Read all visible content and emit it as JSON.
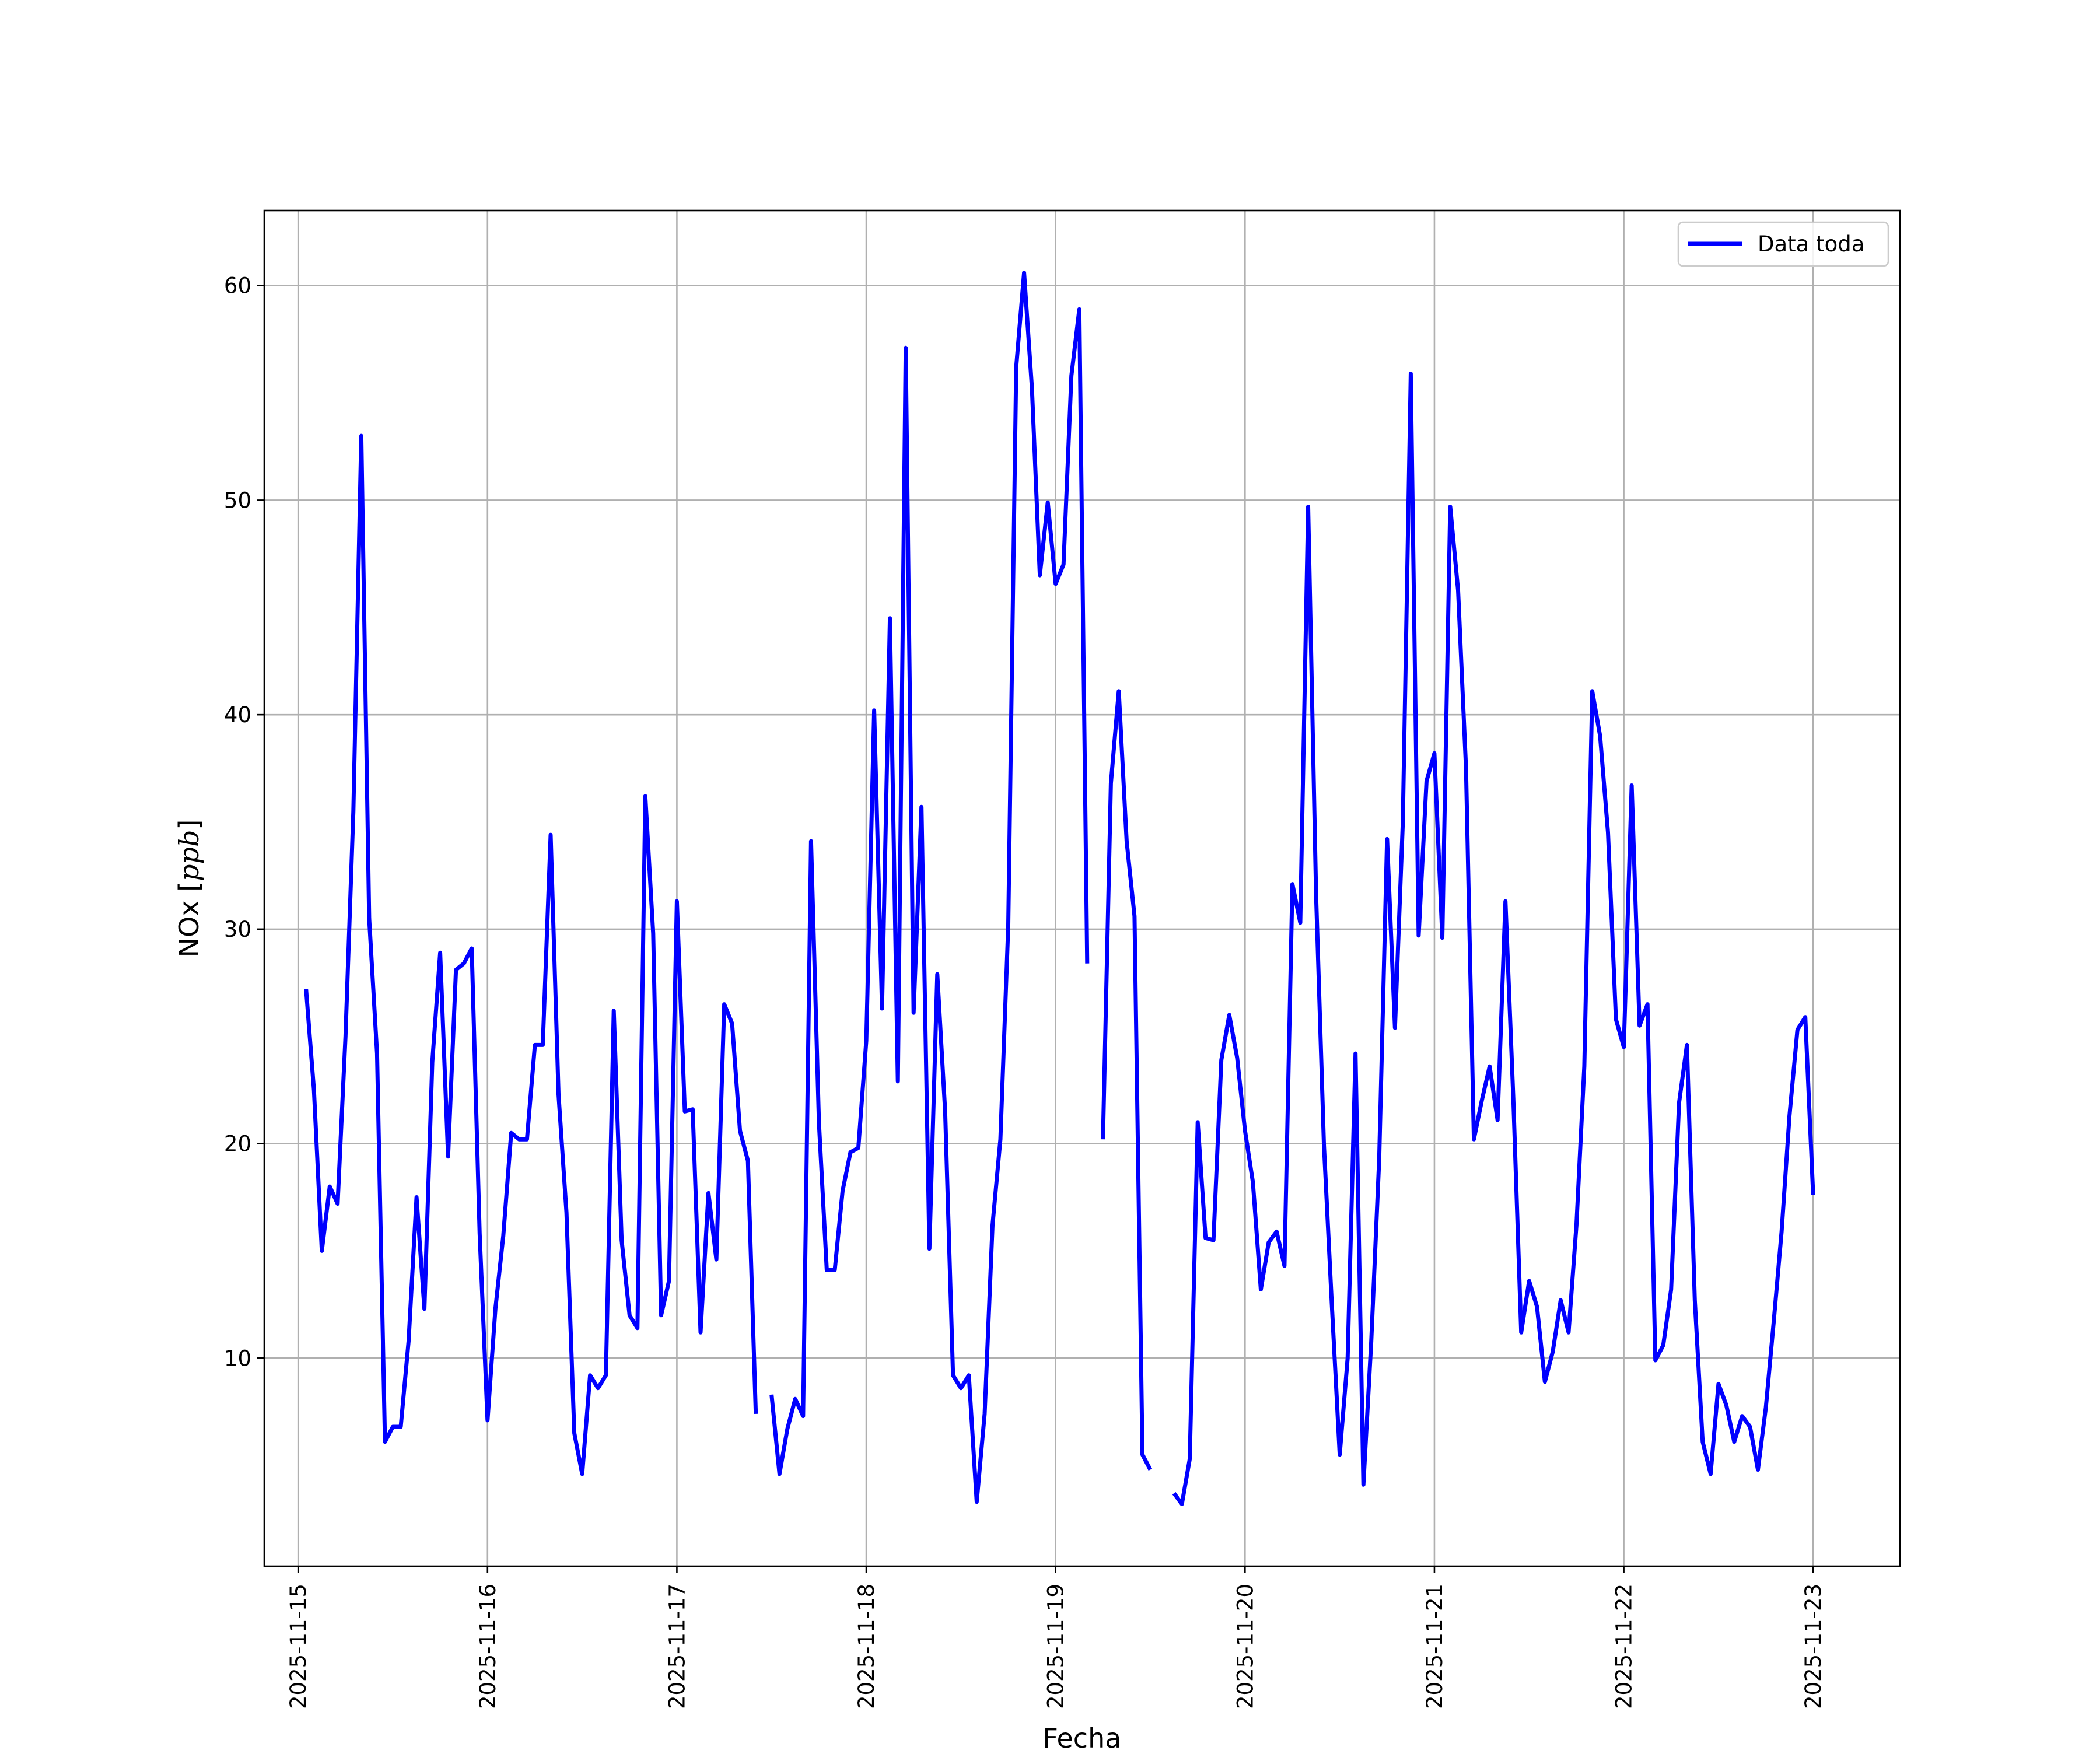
{
  "chart_data": {
    "type": "line",
    "xlabel": "Fecha",
    "ylabel": "NOx [ppb]",
    "ylabel_var": "NOx ",
    "ylabel_unit": "ppb",
    "xlim": [
      "2025-11-14T19:42",
      "2025-11-23T11:00"
    ],
    "ylim": [
      0.3,
      63.5
    ],
    "grid": true,
    "legend_position": "top-right",
    "x_ticks": [
      "2025-11-15",
      "2025-11-16",
      "2025-11-17",
      "2025-11-18",
      "2025-11-19",
      "2025-11-20",
      "2025-11-21",
      "2025-11-22",
      "2025-11-23"
    ],
    "y_ticks": [
      10,
      20,
      30,
      40,
      50,
      60
    ],
    "series": [
      {
        "name": "Data toda",
        "color": "#0000ff",
        "points": [
          [
            "2025-11-15T01:00",
            27.2
          ],
          [
            "2025-11-15T02:00",
            22.5
          ],
          [
            "2025-11-15T03:00",
            15.0
          ],
          [
            "2025-11-15T04:00",
            18.0
          ],
          [
            "2025-11-15T05:00",
            17.2
          ],
          [
            "2025-11-15T06:00",
            25.0
          ],
          [
            "2025-11-15T07:00",
            35.5
          ],
          [
            "2025-11-15T08:00",
            53.0
          ],
          [
            "2025-11-15T09:00",
            30.5
          ],
          [
            "2025-11-15T10:00",
            24.2
          ],
          [
            "2025-11-15T11:00",
            6.1
          ],
          [
            "2025-11-15T12:00",
            6.8
          ],
          [
            "2025-11-15T13:00",
            6.8
          ],
          [
            "2025-11-15T14:00",
            10.8
          ],
          [
            "2025-11-15T15:00",
            17.5
          ],
          [
            "2025-11-15T16:00",
            12.3
          ],
          [
            "2025-11-15T17:00",
            23.8
          ],
          [
            "2025-11-15T18:00",
            28.9
          ],
          [
            "2025-11-15T19:00",
            19.4
          ],
          [
            "2025-11-15T20:00",
            28.1
          ],
          [
            "2025-11-15T21:00",
            28.4
          ],
          [
            "2025-11-15T22:00",
            29.1
          ],
          [
            "2025-11-15T23:00",
            15.8
          ],
          [
            "2025-11-16T00:00",
            7.1
          ],
          [
            "2025-11-16T01:00",
            12.3
          ],
          [
            "2025-11-16T02:00",
            15.7
          ],
          [
            "2025-11-16T03:00",
            20.5
          ],
          [
            "2025-11-16T04:00",
            20.2
          ],
          [
            "2025-11-16T05:00",
            20.2
          ],
          [
            "2025-11-16T06:00",
            24.6
          ],
          [
            "2025-11-16T07:00",
            24.6
          ],
          [
            "2025-11-16T08:00",
            34.4
          ],
          [
            "2025-11-16T09:00",
            22.3
          ],
          [
            "2025-11-16T10:00",
            16.8
          ],
          [
            "2025-11-16T11:00",
            6.5
          ],
          [
            "2025-11-16T12:00",
            4.6
          ],
          [
            "2025-11-16T13:00",
            9.2
          ],
          [
            "2025-11-16T14:00",
            8.6
          ],
          [
            "2025-11-16T15:00",
            9.2
          ],
          [
            "2025-11-16T16:00",
            26.2
          ],
          [
            "2025-11-16T17:00",
            15.5
          ],
          [
            "2025-11-16T18:00",
            12.0
          ],
          [
            "2025-11-16T19:00",
            11.4
          ],
          [
            "2025-11-16T20:00",
            36.2
          ],
          [
            "2025-11-16T21:00",
            29.8
          ],
          [
            "2025-11-16T22:00",
            12.0
          ],
          [
            "2025-11-16T23:00",
            13.6
          ],
          [
            "2025-11-17T00:00",
            31.3
          ],
          [
            "2025-11-17T01:00",
            21.5
          ],
          [
            "2025-11-17T02:00",
            21.6
          ],
          [
            "2025-11-17T03:00",
            11.2
          ],
          [
            "2025-11-17T04:00",
            17.7
          ],
          [
            "2025-11-17T05:00",
            14.6
          ],
          [
            "2025-11-17T06:00",
            26.5
          ],
          [
            "2025-11-17T07:00",
            25.6
          ],
          [
            "2025-11-17T08:00",
            20.6
          ],
          [
            "2025-11-17T09:00",
            19.2
          ],
          [
            "2025-11-17T10:00",
            7.4
          ],
          null,
          [
            "2025-11-17T12:00",
            8.3
          ],
          [
            "2025-11-17T13:00",
            4.6
          ],
          [
            "2025-11-17T14:00",
            6.7
          ],
          [
            "2025-11-17T15:00",
            8.1
          ],
          [
            "2025-11-17T16:00",
            7.3
          ],
          [
            "2025-11-17T17:00",
            34.1
          ],
          [
            "2025-11-17T18:00",
            21.0
          ],
          [
            "2025-11-17T19:00",
            14.1
          ],
          [
            "2025-11-17T20:00",
            14.1
          ],
          [
            "2025-11-17T21:00",
            17.8
          ],
          [
            "2025-11-17T22:00",
            19.6
          ],
          [
            "2025-11-17T23:00",
            19.8
          ],
          [
            "2025-11-18T00:00",
            24.8
          ],
          [
            "2025-11-18T01:00",
            40.2
          ],
          [
            "2025-11-18T02:00",
            26.3
          ],
          [
            "2025-11-18T03:00",
            44.5
          ],
          [
            "2025-11-18T04:00",
            22.9
          ],
          [
            "2025-11-18T05:00",
            57.1
          ],
          [
            "2025-11-18T06:00",
            26.1
          ],
          [
            "2025-11-18T07:00",
            35.7
          ],
          [
            "2025-11-18T08:00",
            15.1
          ],
          [
            "2025-11-18T09:00",
            27.9
          ],
          [
            "2025-11-18T10:00",
            21.5
          ],
          [
            "2025-11-18T11:00",
            9.2
          ],
          [
            "2025-11-18T12:00",
            8.6
          ],
          [
            "2025-11-18T13:00",
            9.2
          ],
          [
            "2025-11-18T14:00",
            3.3
          ],
          [
            "2025-11-18T15:00",
            7.4
          ],
          [
            "2025-11-18T16:00",
            16.2
          ],
          [
            "2025-11-18T17:00",
            20.2
          ],
          [
            "2025-11-18T18:00",
            30.2
          ],
          [
            "2025-11-18T19:00",
            56.2
          ],
          [
            "2025-11-18T20:00",
            60.6
          ],
          [
            "2025-11-18T21:00",
            55.2
          ],
          [
            "2025-11-18T22:00",
            46.5
          ],
          [
            "2025-11-18T23:00",
            49.9
          ],
          [
            "2025-11-19T00:00",
            46.1
          ],
          [
            "2025-11-19T01:00",
            47.0
          ],
          [
            "2025-11-19T02:00",
            55.8
          ],
          [
            "2025-11-19T03:00",
            58.9
          ],
          [
            "2025-11-19T04:00",
            28.4
          ],
          null,
          [
            "2025-11-19T06:00",
            20.2
          ],
          [
            "2025-11-19T07:00",
            36.8
          ],
          [
            "2025-11-19T08:00",
            41.1
          ],
          [
            "2025-11-19T09:00",
            34.1
          ],
          [
            "2025-11-19T10:00",
            30.6
          ],
          [
            "2025-11-19T11:00",
            5.5
          ],
          [
            "2025-11-19T12:00",
            4.8
          ],
          null,
          [
            "2025-11-19T15:00",
            3.7
          ],
          [
            "2025-11-19T16:00",
            3.2
          ],
          [
            "2025-11-19T17:00",
            5.3
          ],
          [
            "2025-11-19T18:00",
            21.0
          ],
          [
            "2025-11-19T19:00",
            15.6
          ],
          [
            "2025-11-19T20:00",
            15.5
          ],
          [
            "2025-11-19T21:00",
            23.9
          ],
          [
            "2025-11-19T22:00",
            26.0
          ],
          [
            "2025-11-19T23:00",
            24.0
          ],
          [
            "2025-11-20T00:00",
            20.6
          ],
          [
            "2025-11-20T01:00",
            18.2
          ],
          [
            "2025-11-20T02:00",
            13.2
          ],
          [
            "2025-11-20T03:00",
            15.4
          ],
          [
            "2025-11-20T04:00",
            15.9
          ],
          [
            "2025-11-20T05:00",
            14.3
          ],
          [
            "2025-11-20T06:00",
            32.1
          ],
          [
            "2025-11-20T07:00",
            30.3
          ],
          [
            "2025-11-20T08:00",
            49.7
          ],
          [
            "2025-11-20T09:00",
            31.6
          ],
          [
            "2025-11-20T10:00",
            19.9
          ],
          [
            "2025-11-20T11:00",
            12.5
          ],
          [
            "2025-11-20T12:00",
            5.5
          ],
          [
            "2025-11-20T13:00",
            10.0
          ],
          [
            "2025-11-20T14:00",
            24.2
          ],
          [
            "2025-11-20T15:00",
            4.1
          ],
          [
            "2025-11-20T16:00",
            10.8
          ],
          [
            "2025-11-20T17:00",
            19.3
          ],
          [
            "2025-11-20T18:00",
            34.2
          ],
          [
            "2025-11-20T19:00",
            25.4
          ],
          [
            "2025-11-20T20:00",
            35.0
          ],
          [
            "2025-11-20T21:00",
            55.9
          ],
          [
            "2025-11-20T22:00",
            29.7
          ],
          [
            "2025-11-20T23:00",
            36.9
          ],
          [
            "2025-11-21T00:00",
            38.2
          ],
          [
            "2025-11-21T01:00",
            29.6
          ],
          [
            "2025-11-21T02:00",
            49.7
          ],
          [
            "2025-11-21T03:00",
            45.8
          ],
          [
            "2025-11-21T04:00",
            37.5
          ],
          [
            "2025-11-21T05:00",
            20.2
          ],
          [
            "2025-11-21T06:00",
            22.0
          ],
          [
            "2025-11-21T07:00",
            23.6
          ],
          [
            "2025-11-21T08:00",
            21.1
          ],
          [
            "2025-11-21T09:00",
            31.3
          ],
          [
            "2025-11-21T10:00",
            22.1
          ],
          [
            "2025-11-21T11:00",
            11.2
          ],
          [
            "2025-11-21T12:00",
            13.6
          ],
          [
            "2025-11-21T13:00",
            12.4
          ],
          [
            "2025-11-21T14:00",
            8.9
          ],
          [
            "2025-11-21T15:00",
            10.3
          ],
          [
            "2025-11-21T16:00",
            12.7
          ],
          [
            "2025-11-21T17:00",
            11.2
          ],
          [
            "2025-11-21T18:00",
            16.2
          ],
          [
            "2025-11-21T19:00",
            23.6
          ],
          [
            "2025-11-21T20:00",
            41.1
          ],
          [
            "2025-11-21T21:00",
            39.0
          ],
          [
            "2025-11-21T22:00",
            34.5
          ],
          [
            "2025-11-21T23:00",
            25.8
          ],
          [
            "2025-11-22T00:00",
            24.5
          ],
          [
            "2025-11-22T01:00",
            36.7
          ],
          [
            "2025-11-22T02:00",
            25.5
          ],
          [
            "2025-11-22T03:00",
            26.5
          ],
          [
            "2025-11-22T04:00",
            9.9
          ],
          [
            "2025-11-22T05:00",
            10.6
          ],
          [
            "2025-11-22T06:00",
            13.2
          ],
          [
            "2025-11-22T07:00",
            21.9
          ],
          [
            "2025-11-22T08:00",
            24.6
          ],
          [
            "2025-11-22T09:00",
            12.7
          ],
          [
            "2025-11-22T10:00",
            6.1
          ],
          [
            "2025-11-22T11:00",
            4.6
          ],
          [
            "2025-11-22T12:00",
            8.8
          ],
          [
            "2025-11-22T13:00",
            7.8
          ],
          [
            "2025-11-22T14:00",
            6.1
          ],
          [
            "2025-11-22T15:00",
            7.3
          ],
          [
            "2025-11-22T16:00",
            6.8
          ],
          [
            "2025-11-22T17:00",
            4.8
          ],
          [
            "2025-11-22T18:00",
            7.7
          ],
          [
            "2025-11-22T19:00",
            11.7
          ],
          [
            "2025-11-22T20:00",
            15.9
          ],
          [
            "2025-11-22T21:00",
            21.3
          ],
          [
            "2025-11-22T22:00",
            25.3
          ],
          [
            "2025-11-22T23:00",
            25.9
          ],
          [
            "2025-11-23T00:00",
            17.6
          ]
        ]
      }
    ]
  }
}
